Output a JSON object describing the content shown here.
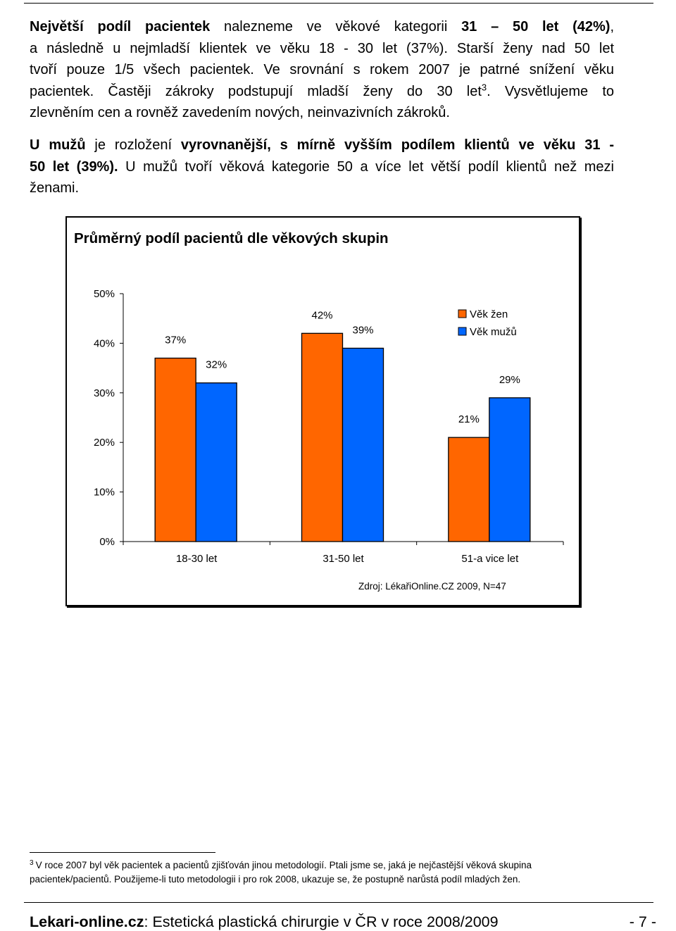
{
  "paragraph1": {
    "line1_bold": "Největší podíl pacientek",
    "line1_rest": " nalezneme ve věkové kategorii ",
    "line1_bold2": "31 – 50 let (42%)",
    "line1_end": ",",
    "line2": "a následně u nejmladší klientek ve věku 18 - 30 let (37%). Starší ženy nad 50 let",
    "line3": "tvoří pouze 1/5 všech pacientek. Ve srovnání s rokem 2007 je patrné snížení věku",
    "line4_a": "pacientek. Častěji zákroky podstupují mladší ženy do 30 let",
    "line4_sup": "3",
    "line4_b": ". Vysvětlujeme to",
    "line5": "zlevněním cen a rovněž zavedením nových, neinvazivních zákroků."
  },
  "paragraph2": {
    "line1_bold_a": "U mužů",
    "line1_rest": " je rozložení ",
    "line1_bold_b": "vyrovnanější, s mírně vyšším podílem klientů ve věku 31 -",
    "line2_bold": "50 let (39%).",
    "line2_rest": " U mužů tvoří věková kategorie 50 a více let větší podíl klientů než mezi",
    "line3": "ženami."
  },
  "chart_data": {
    "type": "bar",
    "title": "Průměrný podíl pacientů dle věkových skupin",
    "categories": [
      "18-30 let",
      "31-50 let",
      "51-a vice let"
    ],
    "series": [
      {
        "name": "Věk žen",
        "values": [
          37,
          42,
          21
        ],
        "labels": [
          "37%",
          "42%",
          "21%"
        ],
        "color": "#ff6600"
      },
      {
        "name": "Věk mužů",
        "values": [
          32,
          39,
          29
        ],
        "labels": [
          "32%",
          "39%",
          "29%"
        ],
        "color": "#0066ff"
      }
    ],
    "y_ticks": [
      "0%",
      "10%",
      "20%",
      "30%",
      "40%",
      "50%"
    ],
    "ylim": [
      0,
      50
    ],
    "legend_position": "top-right",
    "grid": false,
    "source": "Zdroj:  LékařiOnline.CZ 2009, N=47"
  },
  "footnote": {
    "number": "3",
    "text": "V roce 2007 byl věk pacientek a pacientů zjišťován jinou metodologií. Ptali jsme se, jaká je nejčastější věková skupina pacientek/pacientů. Použijeme-li tuto metodologii i pro rok 2008, ukazuje se, že postupně narůstá podíl mladých žen."
  },
  "footer": {
    "site": "Lekari-online.cz",
    "title": ": Estetická plastická chirurgie v ČR v roce 2008/2009",
    "page": "- 7 -"
  }
}
